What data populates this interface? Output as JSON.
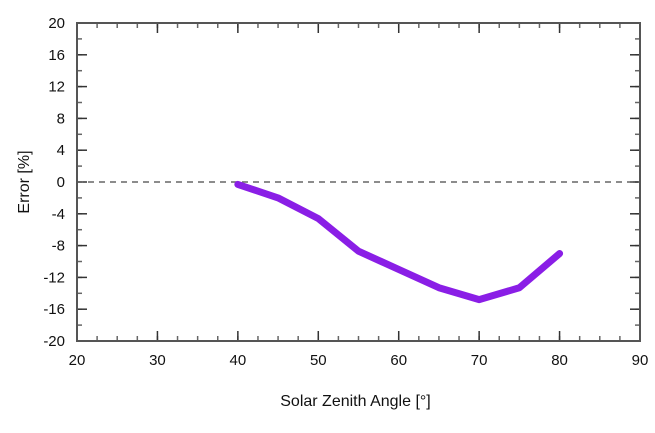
{
  "chart_data": {
    "type": "line",
    "title": "",
    "xlabel": "Solar Zenith Angle [°]",
    "ylabel": "Error [%]",
    "xlim": [
      20,
      90
    ],
    "ylim": [
      -20,
      20
    ],
    "xticks": [
      20,
      30,
      40,
      50,
      60,
      70,
      80,
      90
    ],
    "yticks": [
      20,
      16,
      12,
      8,
      4,
      0,
      -4,
      -8,
      -12,
      -16,
      -20
    ],
    "x_minor_step": 2.5,
    "y_minor_step": 2,
    "grid": false,
    "legend": null,
    "reference_line": {
      "y": 0,
      "style": "dashed",
      "color": "#666666"
    },
    "series": [
      {
        "name": "Error",
        "color": "#8a1ee6",
        "x": [
          40,
          45,
          50,
          55,
          60,
          65,
          70,
          75,
          80
        ],
        "values": [
          -0.3,
          -2.0,
          -4.6,
          -8.7,
          -11.0,
          -13.3,
          -14.8,
          -13.3,
          -9.0
        ]
      }
    ]
  }
}
